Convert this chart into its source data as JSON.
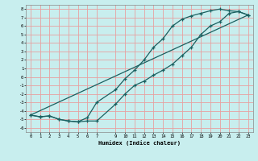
{
  "title": "",
  "xlabel": "Humidex (Indice chaleur)",
  "bg_color": "#c8eeee",
  "grid_color": "#e8a0a0",
  "line_color": "#1a6060",
  "xlim": [
    -0.5,
    23.5
  ],
  "ylim": [
    -6.5,
    8.5
  ],
  "xticks": [
    0,
    1,
    2,
    3,
    4,
    5,
    6,
    7,
    9,
    10,
    11,
    12,
    13,
    14,
    15,
    16,
    17,
    18,
    19,
    20,
    21,
    22,
    23
  ],
  "yticks": [
    8,
    7,
    6,
    5,
    4,
    3,
    2,
    1,
    0,
    -1,
    -2,
    -3,
    -4,
    -5,
    -6
  ],
  "line1_x": [
    0,
    1,
    2,
    3,
    4,
    5,
    6,
    7,
    9,
    10,
    11,
    12,
    13,
    14,
    15,
    16,
    17,
    18,
    19,
    20,
    21,
    22,
    23
  ],
  "line1_y": [
    -4.5,
    -4.7,
    -4.6,
    -5.0,
    -5.2,
    -5.3,
    -5.2,
    -5.2,
    -3.2,
    -2.0,
    -1.0,
    -0.5,
    0.2,
    0.8,
    1.5,
    2.5,
    3.5,
    5.0,
    6.0,
    6.5,
    7.5,
    7.7,
    7.3
  ],
  "line2_x": [
    0,
    1,
    2,
    3,
    4,
    5,
    6,
    7,
    9,
    10,
    11,
    12,
    13,
    14,
    15,
    16,
    17,
    18,
    19,
    20,
    21,
    22,
    23
  ],
  "line2_y": [
    -4.5,
    -4.7,
    -4.6,
    -5.0,
    -5.2,
    -5.3,
    -4.8,
    -3.0,
    -1.5,
    -0.2,
    0.8,
    2.0,
    3.5,
    4.5,
    6.0,
    6.8,
    7.2,
    7.5,
    7.8,
    8.0,
    7.8,
    7.7,
    7.3
  ],
  "line3_x": [
    0,
    23
  ],
  "line3_y": [
    -4.5,
    7.3
  ],
  "marker": "+"
}
